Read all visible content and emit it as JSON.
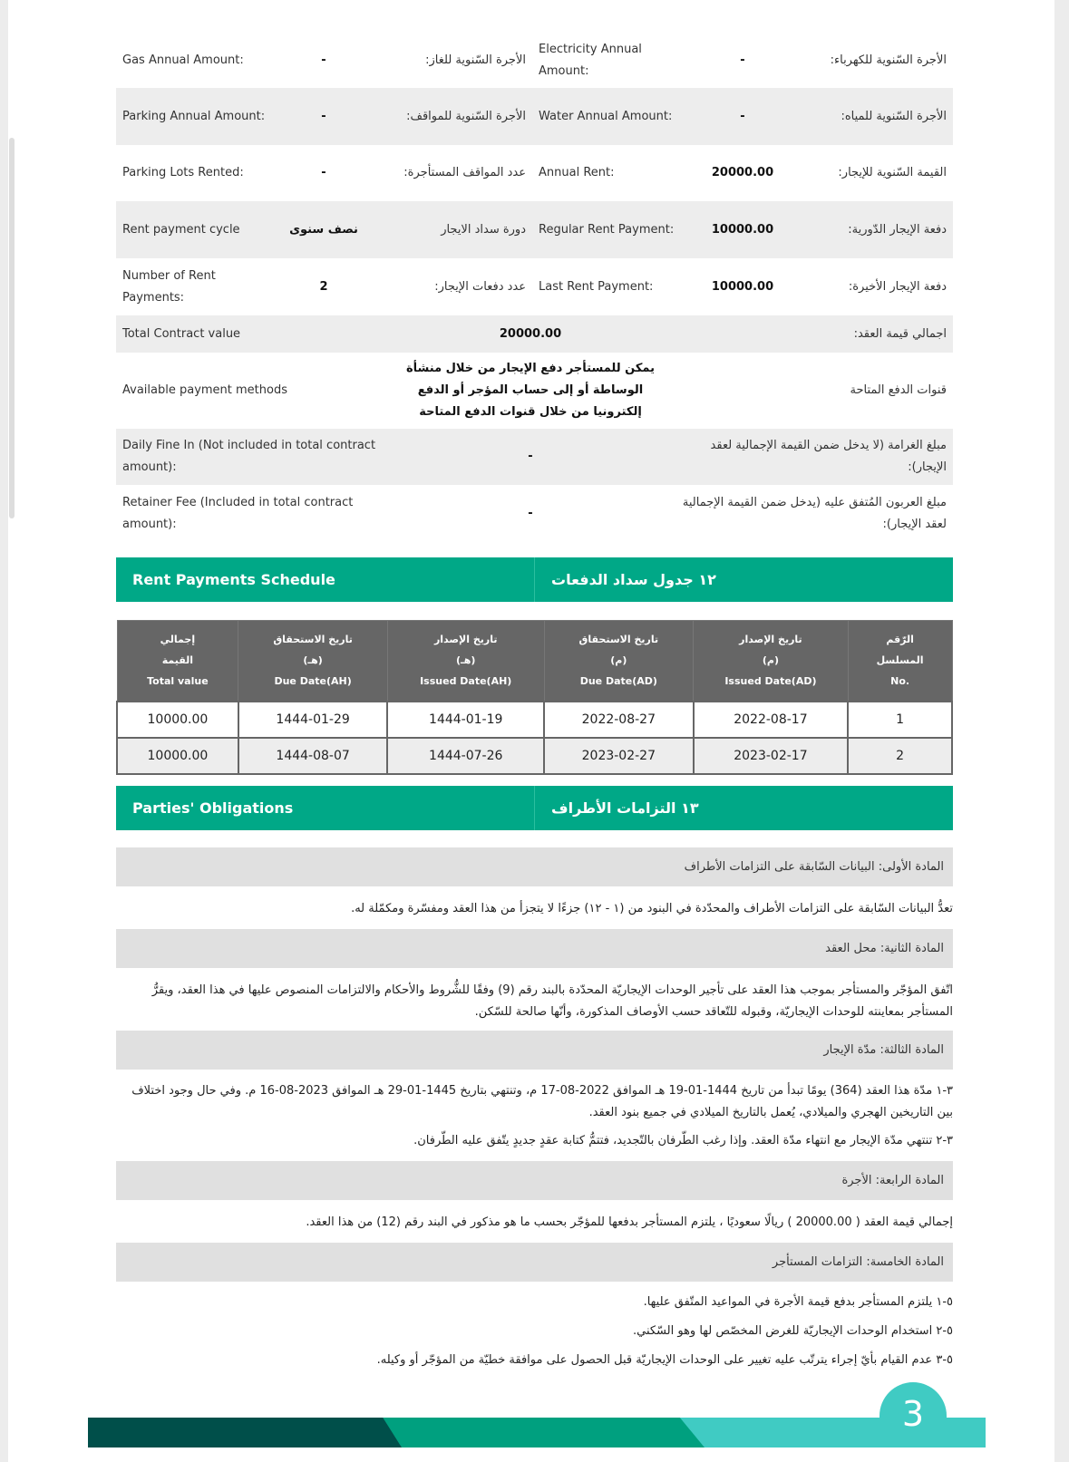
{
  "details": [
    {
      "l_en": "Gas Annual Amount:",
      "l_val": "-",
      "l_ar": "الأجرة السّنوية للغاز:",
      "r_en": "Electricity Annual Amount:",
      "r_val": "-",
      "r_ar": "الأجرة السّنوية للكهرباء:"
    },
    {
      "l_en": "Parking Annual Amount:",
      "l_val": "-",
      "l_ar": "الأجرة السّنوية للمواقف:",
      "r_en": "Water Annual Amount:",
      "r_val": "-",
      "r_ar": "الأجرة السّنوية للمياه:"
    },
    {
      "l_en": "Parking Lots Rented:",
      "l_val": "-",
      "l_ar": "عدد المواقف المستأجرة:",
      "r_en": "Annual Rent:",
      "r_val": "20000.00",
      "r_ar": "القيمة السّنوية للإيجار:"
    },
    {
      "l_en": "Rent payment cycle",
      "l_val": "نصف سنوى",
      "l_ar": "دورة سداد الايجار",
      "r_en": "Regular Rent Payment:",
      "r_val": "10000.00",
      "r_ar": "دفعة الإيجار الدّورية:"
    },
    {
      "l_en": "Number of Rent Payments:",
      "l_val": "2",
      "l_ar": "عدد دفعات الإيجار:",
      "r_en": "Last Rent Payment:",
      "r_val": "10000.00",
      "r_ar": "دفعة الإيجار الأخيرة:"
    }
  ],
  "wide": [
    {
      "en": "Total Contract value",
      "val": "20000.00",
      "ar": "اجمالي قيمة العقد:"
    },
    {
      "en": "Available payment methods",
      "val": "يمكن للمستأجر دفع الإيجار من خلال منشأة الوساطة أو إلى حساب المؤجر أو الدفع إلكترونيا من خلال قنوات الدفع المتاحة",
      "ar": "قنوات الدفع المتاحة"
    },
    {
      "en": "Daily Fine In (Not included in total contract amount):",
      "val": "-",
      "ar": "مبلغ الغرامة (لا يدخل ضمن القيمة الإجمالية لعقد الإيجار):"
    },
    {
      "en": "Retainer Fee (Included in total contract amount):",
      "val": "-",
      "ar": "مبلغ العربون المُتفق عليه (يدخل ضمن القيمة الإجمالية لعقد الإيجار):"
    }
  ],
  "schedule": {
    "title_en": "Rent Payments Schedule",
    "title_ar": "١٢ جدول سداد الدفعات",
    "headers": [
      {
        "ar1": "الرّقم",
        "ar2": "المسلسل",
        "en": ".No"
      },
      {
        "ar1": "تاريخ الإصدار",
        "ar2": "(م)",
        "en": "Issued Date(AD)"
      },
      {
        "ar1": "تاريخ الاستحقاق",
        "ar2": "(م)",
        "en": "Due Date(AD)"
      },
      {
        "ar1": "تاريخ الإصدار",
        "ar2": "(هـ)",
        "en": "Issued Date(AH)"
      },
      {
        "ar1": "تاريخ الاستحقاق",
        "ar2": "(هـ)",
        "en": "Due Date(AH)"
      },
      {
        "ar1": "إجمالي",
        "ar2": "القيمة",
        "en": "Total value"
      }
    ],
    "rows": [
      [
        "1",
        "2022-08-17",
        "2022-08-27",
        "1444-01-19",
        "1444-01-29",
        "10000.00"
      ],
      [
        "2",
        "2023-02-17",
        "2023-02-27",
        "1444-07-26",
        "1444-08-07",
        "10000.00"
      ]
    ]
  },
  "obligations": {
    "title_en": "Parties' Obligations",
    "title_ar": "١٣ التزامات الأطراف",
    "a1": "المادة الأولى: البيانات السّابقة على التزامات الأطراف",
    "a1_t": "تعدُّ البيانات السّابقة على التزامات الأطراف والمحدّدة في البنود من (١ - ١٢) جزءًا لا يتجزأ من هذا العقد ومفسّرة ومكمّلة له.",
    "a2": "المادة الثانية: محل العقد",
    "a2_t": "اتّفق المؤجّر والمستأجر بموجب هذا العقد على تأجير الوحدات الإيجاريّة المحدّدة بالبند رقم (9) وفقًا للشُّروط والأحكام والالتزامات المنصوص عليها في هذا العقد، ويقرُّ المستأجر بمعاينته للوحدات الإيجاريّة، وقبوله للتّعاقد حسب الأوصاف المذكورة، وأنّها صالحة للسّكن.",
    "a3": "المادة الثالثة: مدّة الإيجار",
    "a3_t1": "٣-١ مدّة هذا العقد (364) يومًا تبدأ من تاريخ 1444-01-19 هـ الموافق 2022-08-17 م، وتنتهي بتاريخ 1445-01-29 هـ الموافق 2023-08-16 م. وفي حال وجود اختلاف بين التاريخين الهجري والميلادي، يُعمل بالتاريخ الميلادي في جميع بنود العقد.",
    "a3_t2": "٣-٢ تنتهي مدّة الإيجار مع انتهاء مدّة العقد. وإذا رغب الطّرفان بالتّجديد، فتتمُّ كتابة عقدٍ جديدٍ يتّفق عليه الطّرفان.",
    "a4": "المادة الرابعة: الأجرة",
    "a4_t": "إجمالي قيمة العقد ( 20000.00 ) ريالًا سعوديًا ، يلتزم المستأجر بدفعها للمؤجّر بحسب ما هو مذكور في البند رقم (12) من هذا العقد.",
    "a5": "المادة الخامسة: التزامات المستأجر",
    "a5_items": [
      "٥-١ يلتزم المستأجر بدفع قيمة الأجرة في المواعيد المتّفق عليها.",
      "٥-٢ استخدام الوحدات الإيجاريّة للغرض المخصّص لها وهو السّكني.",
      "٥-٣ عدم القيام بأيّ إجراء يترتّب عليه تغيير على الوحدات الإيجاريّة قبل الحصول على موافقة خطيّة من المؤجّر أو وكيله."
    ]
  },
  "page_number": "3",
  "colors": {
    "green": "#00a887",
    "dark": "#004f4a",
    "teal": "#40cbc3"
  }
}
